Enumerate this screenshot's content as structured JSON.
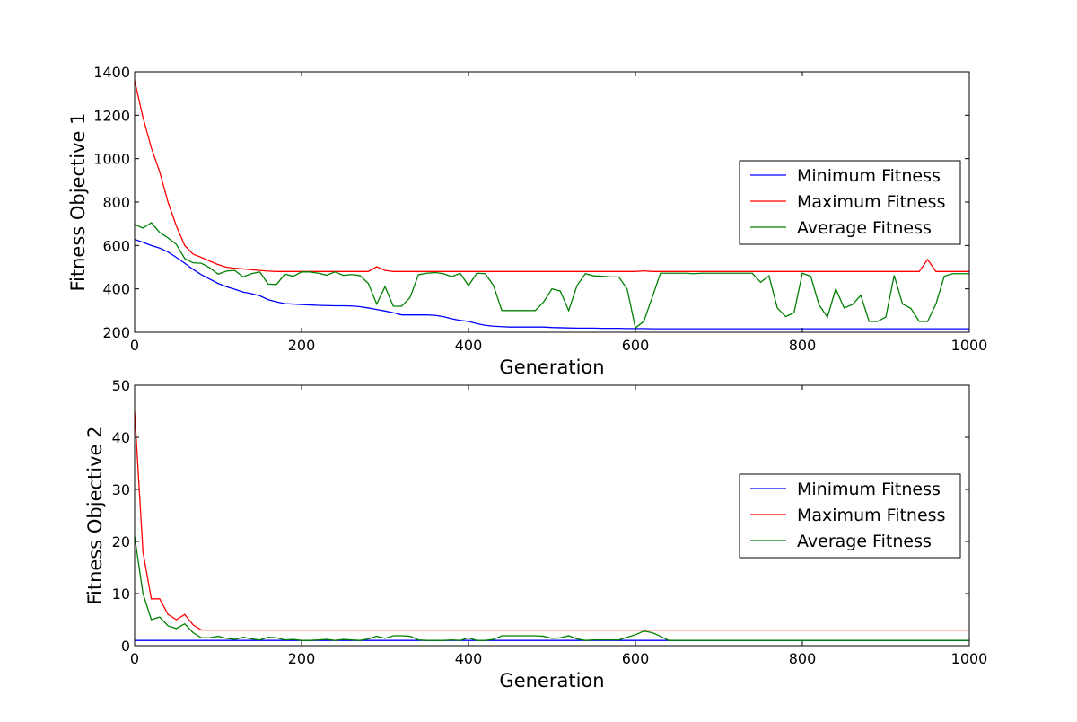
{
  "chart_data": [
    {
      "type": "line",
      "title": "",
      "xlabel": "Generation",
      "ylabel": "Fitness Objective 1",
      "xlim": [
        0,
        1000
      ],
      "ylim": [
        200,
        1400
      ],
      "xticks": [
        0,
        200,
        400,
        600,
        800,
        1000
      ],
      "yticks": [
        200,
        400,
        600,
        800,
        1000,
        1200,
        1400
      ],
      "legend_position": "center-right",
      "x": [
        0,
        10,
        20,
        30,
        40,
        50,
        60,
        70,
        80,
        90,
        100,
        110,
        120,
        130,
        140,
        150,
        160,
        170,
        180,
        190,
        200,
        210,
        220,
        230,
        240,
        250,
        260,
        270,
        280,
        290,
        300,
        310,
        320,
        330,
        340,
        350,
        360,
        370,
        380,
        390,
        400,
        410,
        420,
        430,
        440,
        450,
        460,
        470,
        480,
        490,
        500,
        510,
        520,
        530,
        540,
        550,
        560,
        570,
        580,
        590,
        600,
        610,
        620,
        630,
        640,
        650,
        660,
        670,
        680,
        690,
        700,
        710,
        720,
        730,
        740,
        750,
        760,
        770,
        780,
        790,
        800,
        810,
        820,
        830,
        840,
        850,
        860,
        870,
        880,
        890,
        900,
        910,
        920,
        930,
        940,
        950,
        960,
        970,
        980,
        990,
        1000
      ],
      "series": [
        {
          "name": "Minimum Fitness",
          "color": "#0000ff",
          "values": [
            628,
            615,
            600,
            588,
            570,
            545,
            518,
            490,
            465,
            445,
            425,
            410,
            398,
            385,
            378,
            368,
            350,
            340,
            332,
            330,
            328,
            326,
            324,
            323,
            322,
            322,
            321,
            318,
            312,
            305,
            298,
            290,
            280,
            280,
            280,
            280,
            278,
            272,
            262,
            255,
            250,
            240,
            232,
            228,
            226,
            224,
            224,
            224,
            224,
            224,
            222,
            221,
            220,
            219,
            219,
            219,
            218,
            218,
            218,
            217,
            217,
            217,
            216,
            216,
            216,
            216,
            216,
            216,
            216,
            216,
            216,
            216,
            216,
            216,
            216,
            216,
            216,
            216,
            216,
            216,
            216,
            216,
            216,
            216,
            216,
            216,
            216,
            216,
            216,
            216,
            216,
            216,
            216,
            216,
            216,
            216,
            216,
            216,
            216,
            216,
            216
          ]
        },
        {
          "name": "Maximum Fitness",
          "color": "#ff0000",
          "values": [
            1360,
            1190,
            1050,
            940,
            800,
            690,
            600,
            560,
            545,
            528,
            512,
            500,
            495,
            492,
            488,
            485,
            482,
            480,
            480,
            480,
            480,
            480,
            480,
            480,
            480,
            480,
            480,
            480,
            480,
            502,
            485,
            480,
            480,
            480,
            480,
            480,
            480,
            480,
            480,
            480,
            480,
            480,
            480,
            480,
            480,
            480,
            480,
            480,
            480,
            480,
            480,
            480,
            480,
            480,
            480,
            480,
            480,
            480,
            480,
            480,
            480,
            483,
            480,
            480,
            480,
            480,
            480,
            480,
            480,
            480,
            480,
            480,
            480,
            480,
            480,
            480,
            480,
            480,
            480,
            480,
            480,
            480,
            480,
            480,
            480,
            480,
            480,
            480,
            480,
            480,
            480,
            480,
            480,
            480,
            480,
            535,
            480,
            480,
            480,
            480,
            480
          ]
        },
        {
          "name": "Average Fitness",
          "color": "#008000",
          "values": [
            697,
            680,
            705,
            660,
            635,
            605,
            540,
            520,
            518,
            497,
            468,
            482,
            485,
            455,
            470,
            478,
            422,
            420,
            468,
            458,
            478,
            478,
            472,
            463,
            478,
            462,
            466,
            461,
            425,
            330,
            410,
            320,
            320,
            360,
            465,
            472,
            475,
            470,
            456,
            472,
            415,
            472,
            470,
            415,
            300,
            300,
            300,
            300,
            300,
            340,
            400,
            390,
            300,
            415,
            470,
            460,
            458,
            455,
            455,
            400,
            220,
            250,
            360,
            472,
            472,
            472,
            472,
            470,
            472,
            472,
            472,
            472,
            472,
            472,
            472,
            430,
            460,
            312,
            272,
            290,
            472,
            458,
            326,
            270,
            400,
            312,
            328,
            370,
            250,
            250,
            270,
            462,
            330,
            310,
            250,
            250,
            330,
            458,
            470,
            470,
            470
          ]
        }
      ]
    },
    {
      "type": "line",
      "title": "",
      "xlabel": "Generation",
      "ylabel": "Fitness Objective 2",
      "xlim": [
        0,
        1000
      ],
      "ylim": [
        0,
        50
      ],
      "xticks": [
        0,
        200,
        400,
        600,
        800,
        1000
      ],
      "yticks": [
        0,
        10,
        20,
        30,
        40,
        50
      ],
      "legend_position": "center-right",
      "x": [
        0,
        10,
        20,
        30,
        40,
        50,
        60,
        70,
        80,
        90,
        100,
        110,
        120,
        130,
        140,
        150,
        160,
        170,
        180,
        190,
        200,
        210,
        220,
        230,
        240,
        250,
        260,
        270,
        280,
        290,
        300,
        310,
        320,
        330,
        340,
        350,
        360,
        370,
        380,
        390,
        400,
        410,
        420,
        430,
        440,
        450,
        460,
        470,
        480,
        490,
        500,
        510,
        520,
        530,
        540,
        550,
        560,
        570,
        580,
        590,
        600,
        610,
        620,
        630,
        640,
        650,
        660,
        670,
        680,
        690,
        700,
        710,
        720,
        730,
        740,
        750,
        760,
        770,
        780,
        790,
        800,
        810,
        820,
        830,
        840,
        850,
        860,
        870,
        880,
        890,
        900,
        910,
        920,
        930,
        940,
        950,
        960,
        970,
        980,
        990,
        1000
      ],
      "series": [
        {
          "name": "Minimum Fitness",
          "color": "#0000ff",
          "values": [
            1,
            1,
            1,
            1,
            1,
            1,
            1,
            1,
            1,
            1,
            1,
            1,
            1,
            1,
            1,
            1,
            1,
            1,
            1,
            1,
            1,
            1,
            1,
            1,
            1,
            1,
            1,
            1,
            1,
            1,
            1,
            1,
            1,
            1,
            1,
            1,
            1,
            1,
            1,
            1,
            1,
            1,
            1,
            1,
            1,
            1,
            1,
            1,
            1,
            1,
            1,
            1,
            1,
            1,
            1,
            1,
            1,
            1,
            1,
            1,
            1,
            1,
            1,
            1,
            1,
            1,
            1,
            1,
            1,
            1,
            1,
            1,
            1,
            1,
            1,
            1,
            1,
            1,
            1,
            1,
            1,
            1,
            1,
            1,
            1,
            1,
            1,
            1,
            1,
            1,
            1,
            1,
            1,
            1,
            1,
            1,
            1,
            1,
            1,
            1,
            1
          ]
        },
        {
          "name": "Maximum Fitness",
          "color": "#ff0000",
          "values": [
            45,
            18,
            9,
            9,
            6,
            5,
            6,
            4,
            3,
            3,
            3,
            3,
            3,
            3,
            3,
            3,
            3,
            3,
            3,
            3,
            3,
            3,
            3,
            3,
            3,
            3,
            3,
            3,
            3,
            3,
            3,
            3,
            3,
            3,
            3,
            3,
            3,
            3,
            3,
            3,
            3,
            3,
            3,
            3,
            3,
            3,
            3,
            3,
            3,
            3,
            3,
            3,
            3,
            3,
            3,
            3,
            3,
            3,
            3,
            3,
            3,
            3,
            3,
            3,
            3,
            3,
            3,
            3,
            3,
            3,
            3,
            3,
            3,
            3,
            3,
            3,
            3,
            3,
            3,
            3,
            3,
            3,
            3,
            3,
            3,
            3,
            3,
            3,
            3,
            3,
            3,
            3,
            3,
            3,
            3,
            3,
            3,
            3,
            3,
            3,
            3
          ]
        },
        {
          "name": "Average Fitness",
          "color": "#008000",
          "values": [
            21,
            10,
            5,
            5.5,
            3.8,
            3.3,
            4.2,
            2.5,
            1.5,
            1.5,
            1.8,
            1.4,
            1.2,
            1.6,
            1.3,
            1.1,
            1.6,
            1.5,
            1.1,
            1.2,
            1.0,
            1.0,
            1.1,
            1.2,
            1.0,
            1.2,
            1.1,
            1.0,
            1.3,
            1.8,
            1.4,
            1.9,
            1.9,
            1.8,
            1.1,
            1.0,
            1.0,
            1.0,
            1.1,
            1.0,
            1.5,
            1.0,
            1.0,
            1.2,
            1.9,
            1.9,
            1.9,
            1.9,
            1.9,
            1.8,
            1.4,
            1.5,
            1.9,
            1.3,
            1.0,
            1.1,
            1.1,
            1.1,
            1.1,
            1.6,
            2.1,
            2.8,
            2.5,
            1.8,
            1.0,
            1.0,
            1.0,
            1.0,
            1.0,
            1.0,
            1.0,
            1.0,
            1.0,
            1.0,
            1.0,
            1.0,
            1.0,
            1.0,
            1.0,
            1.0,
            1.0,
            1.0,
            1.0,
            1.0,
            1.0,
            1.0,
            1.0,
            1.0,
            1.0,
            1.0,
            1.0,
            1.0,
            1.0,
            1.0,
            1.0,
            1.0,
            1.0,
            1.0,
            1.0,
            1.0,
            1.0
          ]
        }
      ]
    }
  ]
}
